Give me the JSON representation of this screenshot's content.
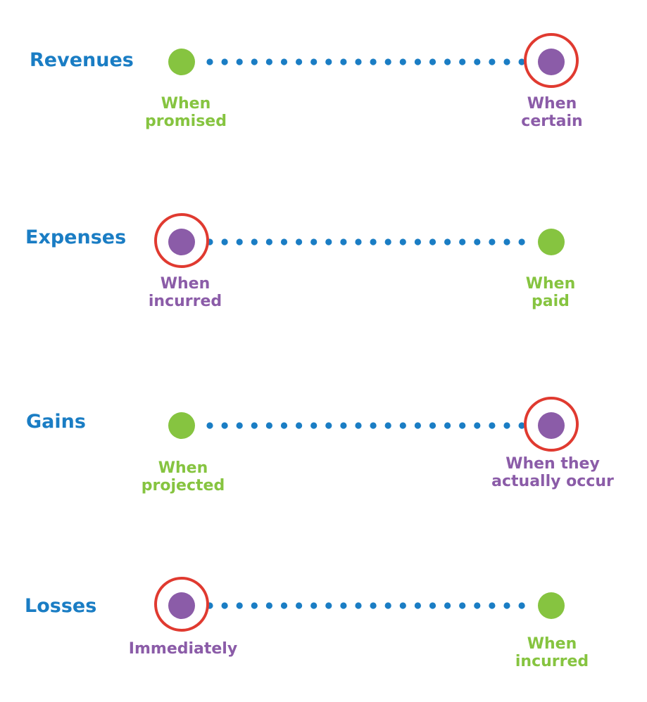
{
  "colors": {
    "label": "#1a7dc4",
    "early": "#86c440",
    "late": "#8b5ca8",
    "highlight": "#e03a30",
    "dots": "#1a7dc4"
  },
  "rows": [
    {
      "label": "Revenues",
      "left": {
        "lines": [
          "When",
          "promised"
        ],
        "kind": "early",
        "highlighted": false
      },
      "right": {
        "lines": [
          "When",
          "certain"
        ],
        "kind": "late",
        "highlighted": true
      }
    },
    {
      "label": "Expenses",
      "left": {
        "lines": [
          "When",
          "incurred"
        ],
        "kind": "late",
        "highlighted": true
      },
      "right": {
        "lines": [
          "When",
          "paid"
        ],
        "kind": "early",
        "highlighted": false
      }
    },
    {
      "label": "Gains",
      "left": {
        "lines": [
          "When",
          "projected"
        ],
        "kind": "early",
        "highlighted": false
      },
      "right": {
        "lines": [
          "When they",
          "actually occur"
        ],
        "kind": "late",
        "highlighted": true
      }
    },
    {
      "label": "Losses",
      "left": {
        "lines": [
          "Immediately"
        ],
        "kind": "late",
        "highlighted": true
      },
      "right": {
        "lines": [
          "When",
          "incurred"
        ],
        "kind": "early",
        "highlighted": false
      }
    }
  ]
}
